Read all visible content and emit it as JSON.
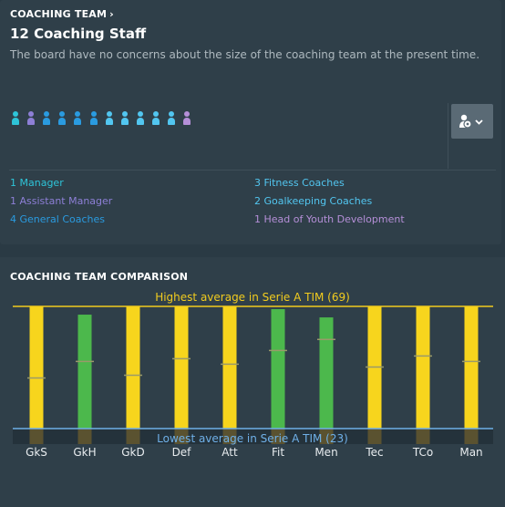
{
  "coaching_team": {
    "section_title": "COACHING TEAM",
    "chevron": "›",
    "staff_count": "12 Coaching Staff",
    "board_message": "The board have no concerns about the size of the coaching team at the present time.",
    "people_colors": [
      "#2ec4d8",
      "#8d7fd6",
      "#2a9be0",
      "#2a9be0",
      "#2a9be0",
      "#2a9be0",
      "#52c6f0",
      "#52c6f0",
      "#52c6f0",
      "#52c6f0",
      "#52c6f0",
      "#b58fd8"
    ],
    "filter_button_icon": "person-settings-icon",
    "legend": [
      {
        "label": "1 Manager",
        "color": "#2ec4d8"
      },
      {
        "label": "1 Assistant Manager",
        "color": "#8d7fd6"
      },
      {
        "label": "4 General Coaches",
        "color": "#2a9be0"
      },
      {
        "label": "3 Fitness Coaches",
        "color": "#52c6f0"
      },
      {
        "label": "2 Goalkeeping Coaches",
        "color": "#52c6f0"
      },
      {
        "label": "1 Head of Youth Development",
        "color": "#b58fd8"
      }
    ]
  },
  "comparison": {
    "section_title": "COACHING TEAM COMPARISON"
  },
  "colors": {
    "highest": "#f2cc1e",
    "lowest": "#6fb0e8",
    "bar_yellow": "#f7d51d",
    "bar_green": "#4cb84c",
    "bar_dim": "#5a5230"
  },
  "chart_data": {
    "type": "bar",
    "categories": [
      "GkS",
      "GkH",
      "GkD",
      "Def",
      "Att",
      "Fit",
      "Men",
      "Tec",
      "TCo",
      "Man"
    ],
    "values": [
      69,
      66,
      69,
      69,
      69,
      68,
      65,
      69,
      69,
      69
    ],
    "averages": [
      43,
      49,
      44,
      50,
      48,
      53,
      57,
      47,
      51,
      49
    ],
    "colors": [
      "yellow",
      "green",
      "yellow",
      "yellow",
      "yellow",
      "green",
      "green",
      "yellow",
      "yellow",
      "yellow"
    ],
    "highest_label": "Highest average in Serie A TIM (69)",
    "lowest_label": "Lowest average in Serie A TIM (23)",
    "highest": 69,
    "lowest": 23,
    "ylim": [
      19,
      69
    ]
  }
}
